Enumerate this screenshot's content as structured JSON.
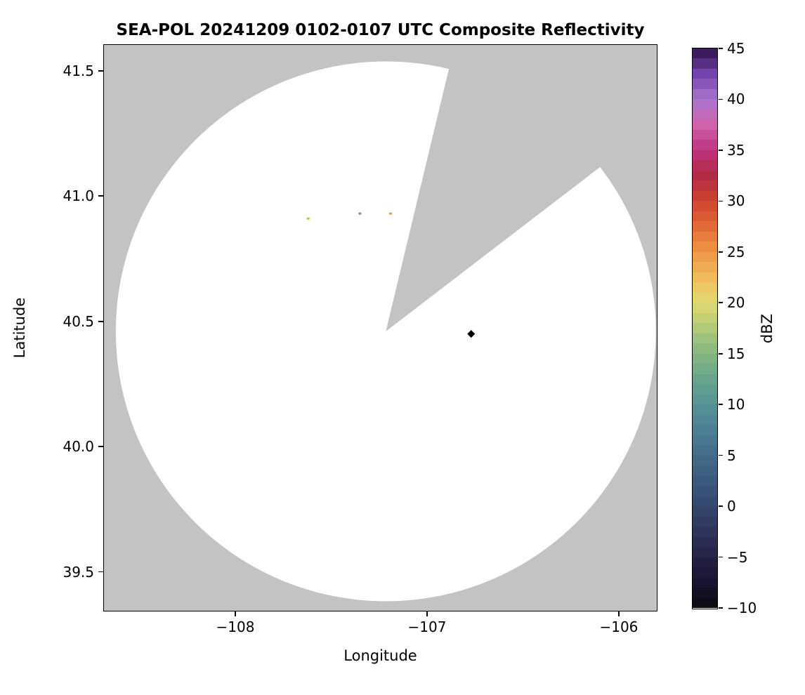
{
  "chart_data": {
    "type": "radar_composite_reflectivity_map",
    "title": "SEA-POL 20241209 0102-0107 UTC Composite Reflectivity",
    "xlabel": "Longitude",
    "ylabel": "Latitude",
    "xlim": [
      -108.685,
      -105.802
    ],
    "ylim": [
      39.345,
      41.603
    ],
    "grid": false,
    "background_color": "#c3c3c3",
    "coverage_color": "#ffffff",
    "xticks": [
      {
        "v": -108,
        "label": "−108"
      },
      {
        "v": -107,
        "label": "−107"
      },
      {
        "v": -106,
        "label": "−106"
      }
    ],
    "yticks": [
      {
        "v": 39.5,
        "label": "39.5"
      },
      {
        "v": 40.0,
        "label": "40.0"
      },
      {
        "v": 40.5,
        "label": "40.5"
      },
      {
        "v": 41.0,
        "label": "41.0"
      },
      {
        "v": 41.5,
        "label": "41.5"
      }
    ],
    "radar": {
      "center_lon": -107.215,
      "center_lat": 40.46,
      "range_radius_lat_deg": 1.077,
      "blocked_sector_azimuth_deg": [
        13.5,
        52.5
      ],
      "note": "white disc = radar coverage area, gray wedge = blocked sector (no data)"
    },
    "echoes": [
      {
        "lon": -107.62,
        "lat": 40.91,
        "color": "#d2b84a",
        "shape": "pixel"
      },
      {
        "lon": -107.35,
        "lat": 40.93,
        "color": "#69a86a",
        "shape": "pixel"
      },
      {
        "lon": -107.19,
        "lat": 40.93,
        "color": "#d8a84c",
        "shape": "pixel"
      },
      {
        "lon": -106.77,
        "lat": 40.45,
        "color": "#000000",
        "shape": "diamond"
      }
    ],
    "colorbar": {
      "label": "dBZ",
      "min": -10,
      "max": 45,
      "ticks": [
        {
          "v": 45,
          "label": "45"
        },
        {
          "v": 40,
          "label": "40"
        },
        {
          "v": 35,
          "label": "35"
        },
        {
          "v": 30,
          "label": "30"
        },
        {
          "v": 25,
          "label": "25"
        },
        {
          "v": 20,
          "label": "20"
        },
        {
          "v": 15,
          "label": "15"
        },
        {
          "v": 10,
          "label": "10"
        },
        {
          "v": 5,
          "label": "5"
        },
        {
          "v": 0,
          "label": "0"
        },
        {
          "v": -5,
          "label": "−5"
        },
        {
          "v": -10,
          "label": "−10"
        }
      ],
      "stops": [
        [
          -10,
          "#0b0a0e"
        ],
        [
          -7.5,
          "#181430"
        ],
        [
          -5,
          "#262145"
        ],
        [
          -2.5,
          "#2e345c"
        ],
        [
          0,
          "#35476e"
        ],
        [
          2.5,
          "#3b597d"
        ],
        [
          5,
          "#436c8a"
        ],
        [
          7.5,
          "#4d7f94"
        ],
        [
          10,
          "#589297"
        ],
        [
          12.5,
          "#69a58e"
        ],
        [
          15,
          "#84b77f"
        ],
        [
          17.5,
          "#b0ca78"
        ],
        [
          20,
          "#e2d973"
        ],
        [
          22.5,
          "#f2bb5a"
        ],
        [
          25,
          "#ee9646"
        ],
        [
          27.5,
          "#e26a36"
        ],
        [
          30,
          "#cf432f"
        ],
        [
          32.5,
          "#b12b44"
        ],
        [
          35,
          "#bd3380"
        ],
        [
          37.5,
          "#cf63ab"
        ],
        [
          40,
          "#a876cf"
        ],
        [
          42.5,
          "#7443ab"
        ],
        [
          45,
          "#2c1248"
        ]
      ]
    }
  }
}
